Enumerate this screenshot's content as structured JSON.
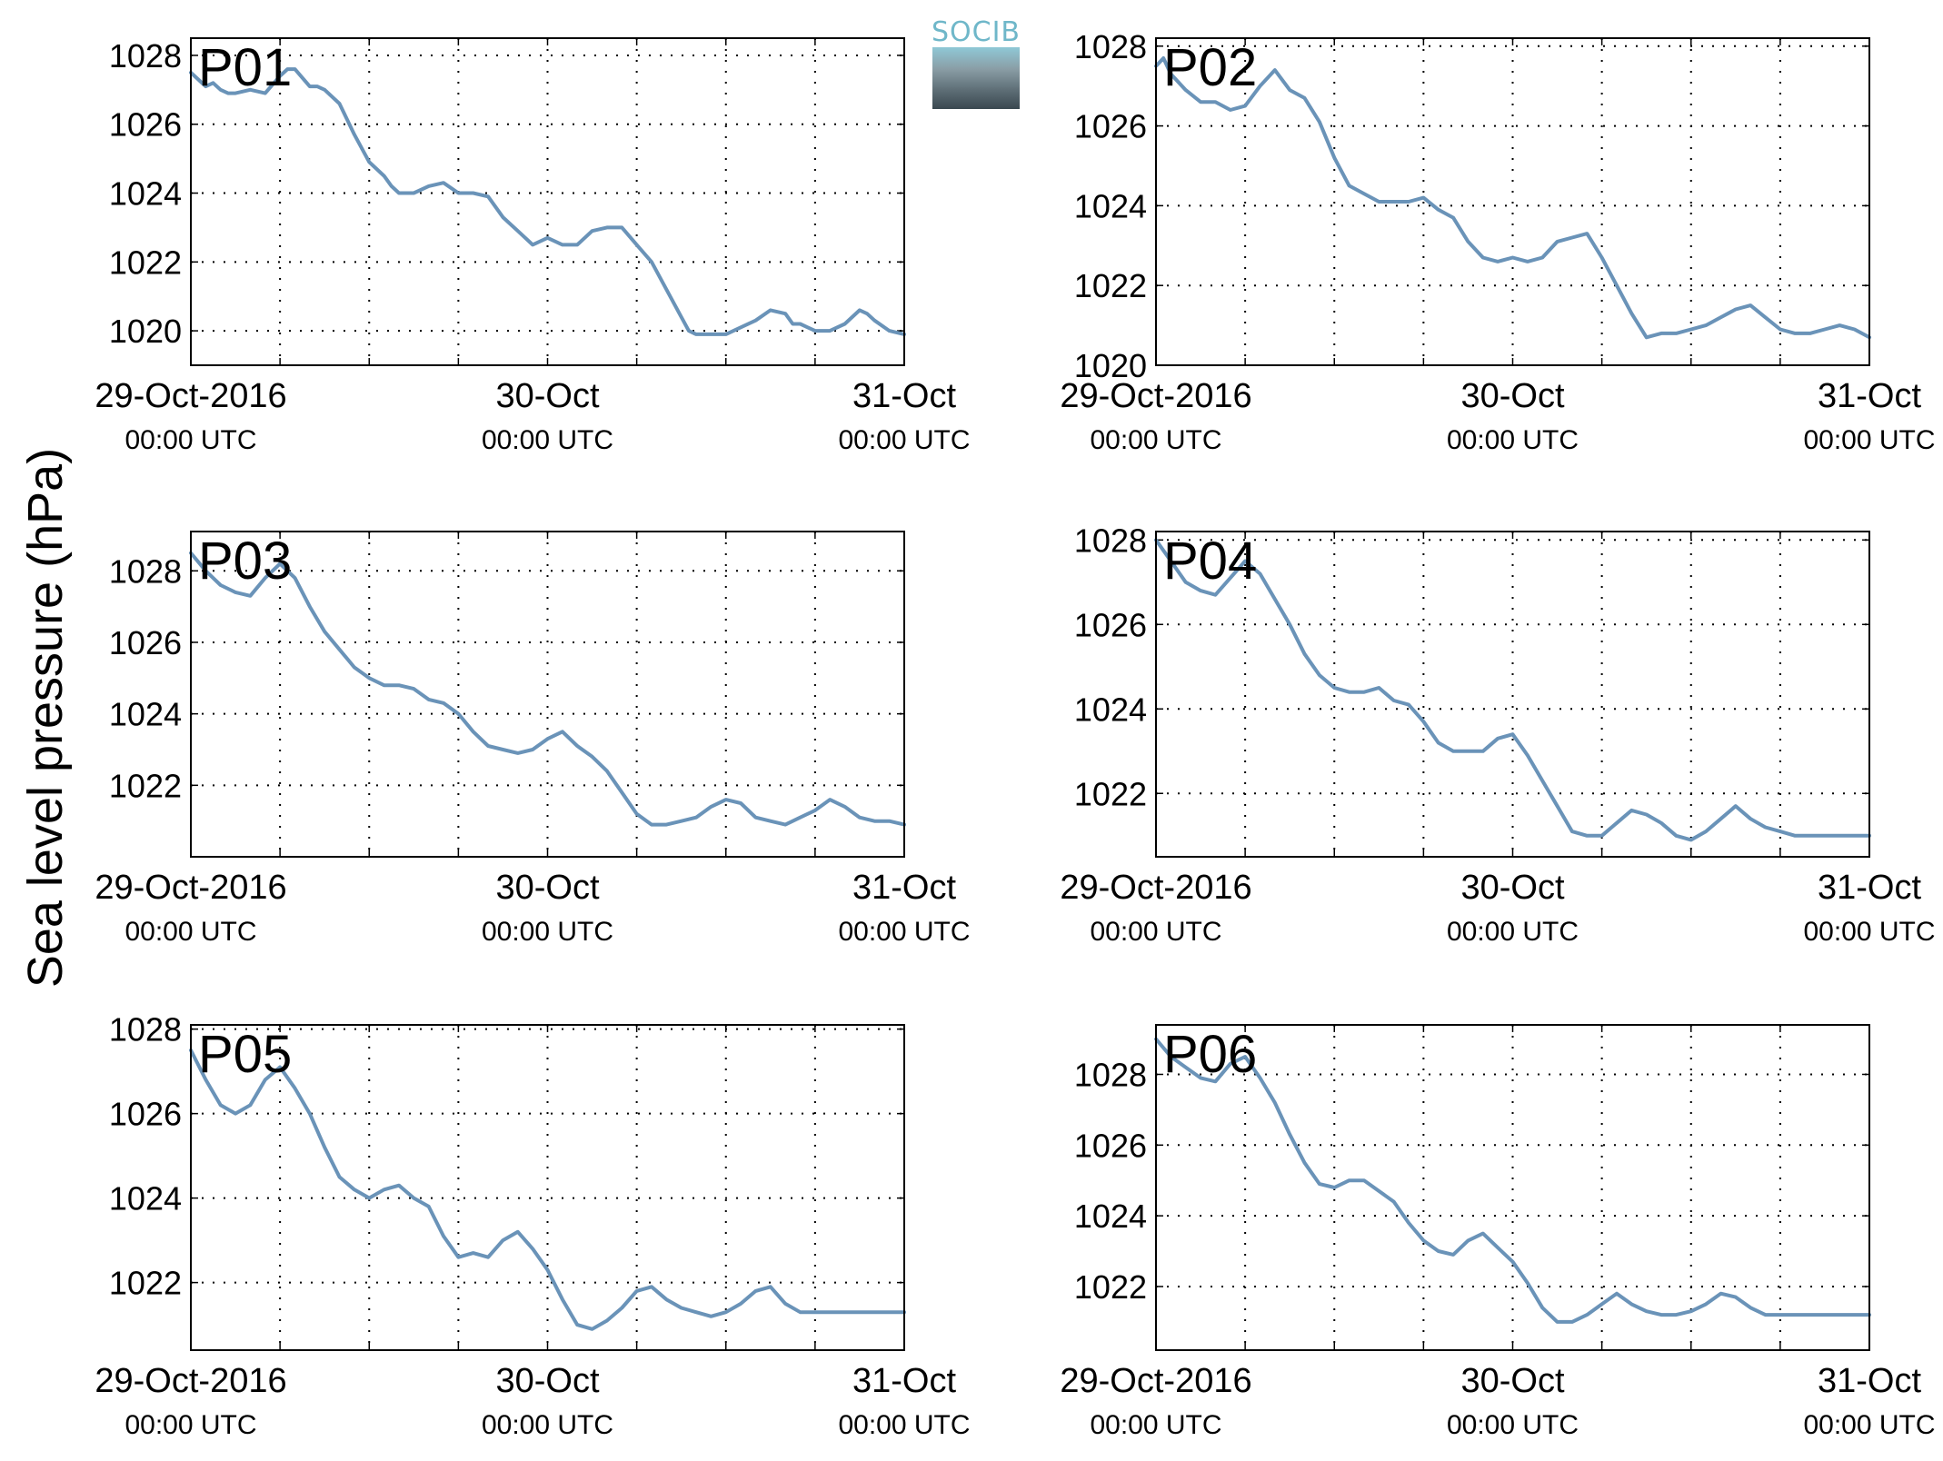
{
  "ylabel": "Sea level pressure (hPa)",
  "logo": {
    "text": "SOCIB"
  },
  "colors": {
    "line": "#6a93b8",
    "panel_label": "#ff0000",
    "grid": "#000000"
  },
  "chart_data": [
    {
      "type": "line",
      "title": "P01",
      "ylim": [
        1019,
        1028.5
      ],
      "xlim": [
        0,
        48
      ],
      "yticks": [
        1020,
        1022,
        1024,
        1026,
        1028
      ],
      "xticks": [
        {
          "x": 0,
          "top": "29-Oct-2016",
          "bottom": "00:00 UTC"
        },
        {
          "x": 24,
          "top": "30-Oct",
          "bottom": "00:00 UTC"
        },
        {
          "x": 48,
          "top": "31-Oct",
          "bottom": "00:00 UTC"
        }
      ],
      "grid": true,
      "x_unit": "hours since 29-Oct-2016 00:00 UTC",
      "series": [
        {
          "x": [
            0,
            1,
            1.5,
            2,
            2.5,
            3,
            4,
            5,
            6,
            6.5,
            7,
            8,
            8.5,
            9,
            10,
            11,
            12,
            13,
            13.5,
            14,
            15,
            16,
            17,
            18,
            19,
            20,
            21,
            22,
            23,
            24,
            25,
            26,
            27,
            28,
            29,
            30,
            31,
            32,
            33,
            33.5,
            34,
            35,
            36,
            37,
            38,
            39,
            40,
            40.5,
            41,
            42,
            43,
            44,
            45,
            45.5,
            46,
            47,
            48
          ],
          "y": [
            1027.5,
            1027.1,
            1027.2,
            1027.0,
            1026.9,
            1026.9,
            1027.0,
            1026.9,
            1027.4,
            1027.6,
            1027.6,
            1027.1,
            1027.1,
            1027.0,
            1026.6,
            1025.7,
            1024.9,
            1024.5,
            1024.2,
            1024.0,
            1024.0,
            1024.2,
            1024.3,
            1024.0,
            1024.0,
            1023.9,
            1023.3,
            1022.9,
            1022.5,
            1022.7,
            1022.5,
            1022.5,
            1022.9,
            1023.0,
            1023.0,
            1022.5,
            1022.0,
            1021.2,
            1020.4,
            1020.0,
            1019.9,
            1019.9,
            1019.9,
            1020.1,
            1020.3,
            1020.6,
            1020.5,
            1020.2,
            1020.2,
            1020.0,
            1020.0,
            1020.2,
            1020.6,
            1020.5,
            1020.3,
            1020.0,
            1019.9
          ]
        }
      ]
    },
    {
      "type": "line",
      "title": "P02",
      "ylim": [
        1020,
        1028.2
      ],
      "xlim": [
        0,
        48
      ],
      "yticks": [
        1020,
        1022,
        1024,
        1026,
        1028
      ],
      "xticks": [
        {
          "x": 0,
          "top": "29-Oct-2016",
          "bottom": "00:00 UTC"
        },
        {
          "x": 24,
          "top": "30-Oct",
          "bottom": "00:00 UTC"
        },
        {
          "x": 48,
          "top": "31-Oct",
          "bottom": "00:00 UTC"
        }
      ],
      "grid": true,
      "x_unit": "hours since 29-Oct-2016 00:00 UTC",
      "series": [
        {
          "x": [
            0,
            0.5,
            1,
            2,
            3,
            4,
            5,
            6,
            7,
            8,
            9,
            10,
            11,
            12,
            13,
            14,
            15,
            16,
            17,
            18,
            19,
            20,
            21,
            22,
            23,
            24,
            25,
            26,
            27,
            28,
            29,
            30,
            31,
            32,
            33,
            34,
            35,
            36,
            37,
            38,
            39,
            40,
            41,
            42,
            43,
            44,
            45,
            46,
            47,
            48
          ],
          "y": [
            1027.5,
            1027.7,
            1027.3,
            1026.9,
            1026.6,
            1026.6,
            1026.4,
            1026.5,
            1027.0,
            1027.4,
            1026.9,
            1026.7,
            1026.1,
            1025.2,
            1024.5,
            1024.3,
            1024.1,
            1024.1,
            1024.1,
            1024.2,
            1023.9,
            1023.7,
            1023.1,
            1022.7,
            1022.6,
            1022.7,
            1022.6,
            1022.7,
            1023.1,
            1023.2,
            1023.3,
            1022.7,
            1022.0,
            1021.3,
            1020.7,
            1020.8,
            1020.8,
            1020.9,
            1021.0,
            1021.2,
            1021.4,
            1021.5,
            1021.2,
            1020.9,
            1020.8,
            1020.8,
            1020.9,
            1021.0,
            1020.9,
            1020.7
          ]
        }
      ]
    },
    {
      "type": "line",
      "title": "P03",
      "ylim": [
        1020,
        1029.1
      ],
      "xlim": [
        0,
        48
      ],
      "yticks": [
        1022,
        1024,
        1026,
        1028
      ],
      "xticks": [
        {
          "x": 0,
          "top": "29-Oct-2016",
          "bottom": "00:00 UTC"
        },
        {
          "x": 24,
          "top": "30-Oct",
          "bottom": "00:00 UTC"
        },
        {
          "x": 48,
          "top": "31-Oct",
          "bottom": "00:00 UTC"
        }
      ],
      "grid": true,
      "x_unit": "hours since 29-Oct-2016 00:00 UTC",
      "series": [
        {
          "x": [
            0,
            1,
            2,
            3,
            4,
            5,
            6,
            7,
            8,
            9,
            10,
            11,
            12,
            13,
            14,
            15,
            16,
            17,
            18,
            19,
            20,
            21,
            22,
            23,
            24,
            25,
            26,
            27,
            28,
            29,
            30,
            31,
            32,
            33,
            34,
            35,
            36,
            37,
            38,
            39,
            40,
            41,
            42,
            43,
            44,
            45,
            46,
            47,
            48
          ],
          "y": [
            1028.5,
            1028.0,
            1027.6,
            1027.4,
            1027.3,
            1027.8,
            1028.2,
            1027.8,
            1027.0,
            1026.3,
            1025.8,
            1025.3,
            1025.0,
            1024.8,
            1024.8,
            1024.7,
            1024.4,
            1024.3,
            1024.0,
            1023.5,
            1023.1,
            1023.0,
            1022.9,
            1023.0,
            1023.3,
            1023.5,
            1023.1,
            1022.8,
            1022.4,
            1021.8,
            1021.2,
            1020.9,
            1020.9,
            1021.0,
            1021.1,
            1021.4,
            1021.6,
            1021.5,
            1021.1,
            1021.0,
            1020.9,
            1021.1,
            1021.3,
            1021.6,
            1021.4,
            1021.1,
            1021.0,
            1021.0,
            1020.9
          ]
        }
      ]
    },
    {
      "type": "line",
      "title": "P04",
      "ylim": [
        1020.5,
        1028.2
      ],
      "xlim": [
        0,
        48
      ],
      "yticks": [
        1022,
        1024,
        1026,
        1028
      ],
      "xticks": [
        {
          "x": 0,
          "top": "29-Oct-2016",
          "bottom": "00:00 UTC"
        },
        {
          "x": 24,
          "top": "30-Oct",
          "bottom": "00:00 UTC"
        },
        {
          "x": 48,
          "top": "31-Oct",
          "bottom": "00:00 UTC"
        }
      ],
      "grid": true,
      "x_unit": "hours since 29-Oct-2016 00:00 UTC",
      "series": [
        {
          "x": [
            0,
            1,
            2,
            3,
            4,
            5,
            6,
            7,
            8,
            9,
            10,
            11,
            12,
            13,
            14,
            15,
            16,
            17,
            18,
            19,
            20,
            21,
            22,
            23,
            24,
            25,
            26,
            27,
            28,
            29,
            30,
            31,
            32,
            33,
            34,
            35,
            36,
            37,
            38,
            39,
            40,
            41,
            42,
            43,
            44,
            45,
            46,
            47,
            48
          ],
          "y": [
            1028.0,
            1027.5,
            1027.0,
            1026.8,
            1026.7,
            1027.1,
            1027.5,
            1027.2,
            1026.6,
            1026.0,
            1025.3,
            1024.8,
            1024.5,
            1024.4,
            1024.4,
            1024.5,
            1024.2,
            1024.1,
            1023.7,
            1023.2,
            1023.0,
            1023.0,
            1023.0,
            1023.3,
            1023.4,
            1022.9,
            1022.3,
            1021.7,
            1021.1,
            1021.0,
            1021.0,
            1021.3,
            1021.6,
            1021.5,
            1021.3,
            1021.0,
            1020.9,
            1021.1,
            1021.4,
            1021.7,
            1021.4,
            1021.2,
            1021.1,
            1021.0,
            1021.0,
            1021.0,
            1021.0,
            1021.0,
            1021.0
          ]
        }
      ]
    },
    {
      "type": "line",
      "title": "P05",
      "ylim": [
        1020.4,
        1028.1
      ],
      "xlim": [
        0,
        48
      ],
      "yticks": [
        1022,
        1024,
        1026,
        1028
      ],
      "xticks": [
        {
          "x": 0,
          "top": "29-Oct-2016",
          "bottom": "00:00 UTC"
        },
        {
          "x": 24,
          "top": "30-Oct",
          "bottom": "00:00 UTC"
        },
        {
          "x": 48,
          "top": "31-Oct",
          "bottom": "00:00 UTC"
        }
      ],
      "grid": true,
      "x_unit": "hours since 29-Oct-2016 00:00 UTC",
      "series": [
        {
          "x": [
            0,
            1,
            2,
            3,
            4,
            5,
            6,
            7,
            8,
            9,
            10,
            11,
            12,
            13,
            14,
            15,
            16,
            17,
            18,
            19,
            20,
            21,
            22,
            23,
            24,
            25,
            26,
            27,
            28,
            29,
            30,
            31,
            32,
            33,
            34,
            35,
            36,
            37,
            38,
            39,
            40,
            41,
            42,
            43,
            44,
            45,
            46,
            47,
            48
          ],
          "y": [
            1027.5,
            1026.8,
            1026.2,
            1026.0,
            1026.2,
            1026.8,
            1027.1,
            1026.6,
            1026.0,
            1025.2,
            1024.5,
            1024.2,
            1024.0,
            1024.2,
            1024.3,
            1024.0,
            1023.8,
            1023.1,
            1022.6,
            1022.7,
            1022.6,
            1023.0,
            1023.2,
            1022.8,
            1022.3,
            1021.6,
            1021.0,
            1020.9,
            1021.1,
            1021.4,
            1021.8,
            1021.9,
            1021.6,
            1021.4,
            1021.3,
            1021.2,
            1021.3,
            1021.5,
            1021.8,
            1021.9,
            1021.5,
            1021.3,
            1021.3,
            1021.3,
            1021.3,
            1021.3,
            1021.3,
            1021.3,
            1021.3
          ]
        }
      ]
    },
    {
      "type": "line",
      "title": "P06",
      "ylim": [
        1020.2,
        1029.4
      ],
      "xlim": [
        0,
        48
      ],
      "yticks": [
        1022,
        1024,
        1026,
        1028
      ],
      "xticks": [
        {
          "x": 0,
          "top": "29-Oct-2016",
          "bottom": "00:00 UTC"
        },
        {
          "x": 24,
          "top": "30-Oct",
          "bottom": "00:00 UTC"
        },
        {
          "x": 48,
          "top": "31-Oct",
          "bottom": "00:00 UTC"
        }
      ],
      "grid": true,
      "x_unit": "hours since 29-Oct-2016 00:00 UTC",
      "series": [
        {
          "x": [
            0,
            1,
            2,
            3,
            4,
            5,
            6,
            7,
            8,
            9,
            10,
            11,
            12,
            13,
            14,
            15,
            16,
            17,
            18,
            19,
            20,
            21,
            22,
            23,
            24,
            25,
            26,
            27,
            28,
            29,
            30,
            31,
            32,
            33,
            34,
            35,
            36,
            37,
            38,
            39,
            40,
            41,
            42,
            43,
            44,
            45,
            46,
            47,
            48
          ],
          "y": [
            1029.0,
            1028.5,
            1028.2,
            1027.9,
            1027.8,
            1028.3,
            1028.5,
            1027.9,
            1027.2,
            1026.3,
            1025.5,
            1024.9,
            1024.8,
            1025.0,
            1025.0,
            1024.7,
            1024.4,
            1023.8,
            1023.3,
            1023.0,
            1022.9,
            1023.3,
            1023.5,
            1023.1,
            1022.7,
            1022.1,
            1021.4,
            1021.0,
            1021.0,
            1021.2,
            1021.5,
            1021.8,
            1021.5,
            1021.3,
            1021.2,
            1021.2,
            1021.3,
            1021.5,
            1021.8,
            1021.7,
            1021.4,
            1021.2,
            1021.2,
            1021.2,
            1021.2,
            1021.2,
            1021.2,
            1021.2,
            1021.2
          ]
        }
      ]
    }
  ]
}
